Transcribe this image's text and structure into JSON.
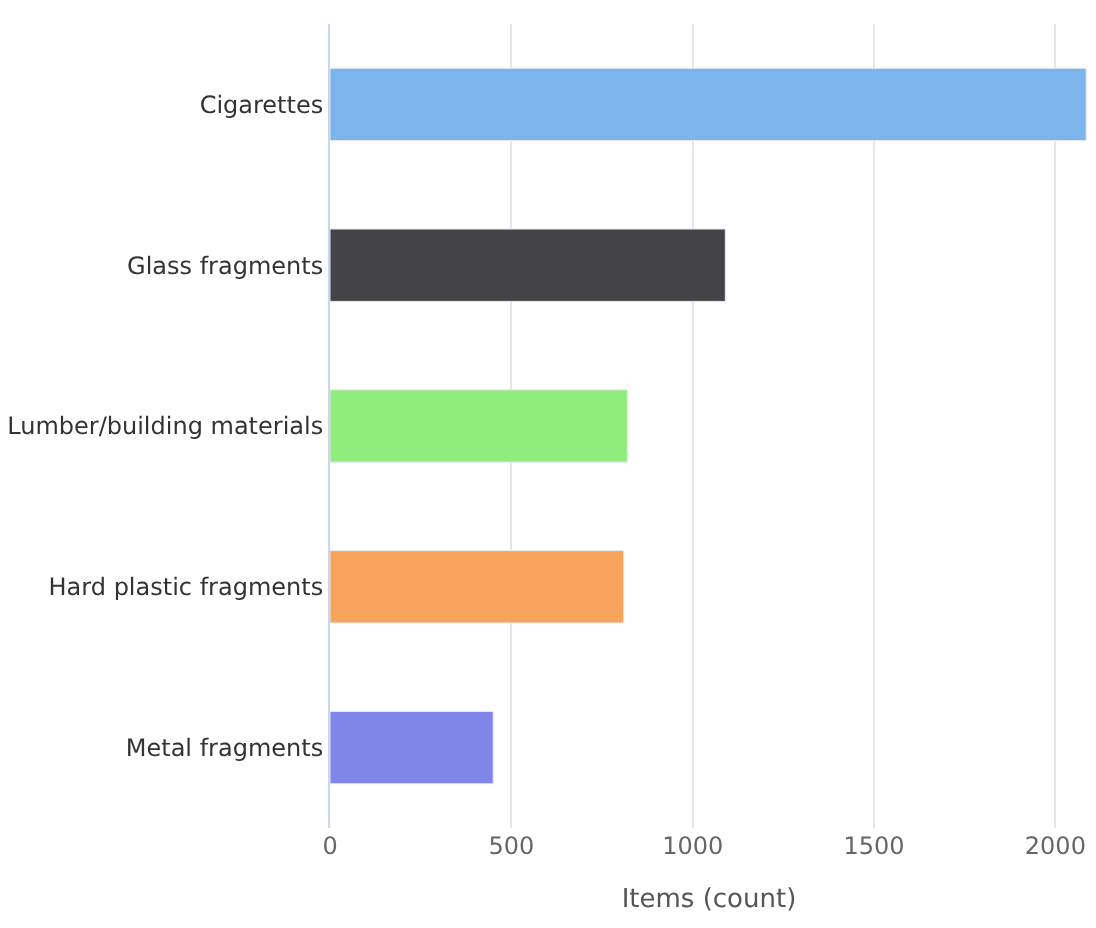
{
  "chart_data": {
    "type": "bar",
    "orientation": "horizontal",
    "xlabel": "Items (count)",
    "categories": [
      "Cigarettes",
      "Glass fragments",
      "Lumber/building materials",
      "Hard plastic fragments",
      "Metal fragments"
    ],
    "values": [
      2085,
      1090,
      820,
      810,
      450
    ],
    "colors": [
      "#7cb5ec",
      "#434348",
      "#90ed7d",
      "#f7a35c",
      "#8085e9"
    ],
    "xlim": [
      0,
      2090
    ],
    "xticks": [
      0,
      500,
      1000,
      1500,
      2000
    ],
    "grid": "x"
  }
}
